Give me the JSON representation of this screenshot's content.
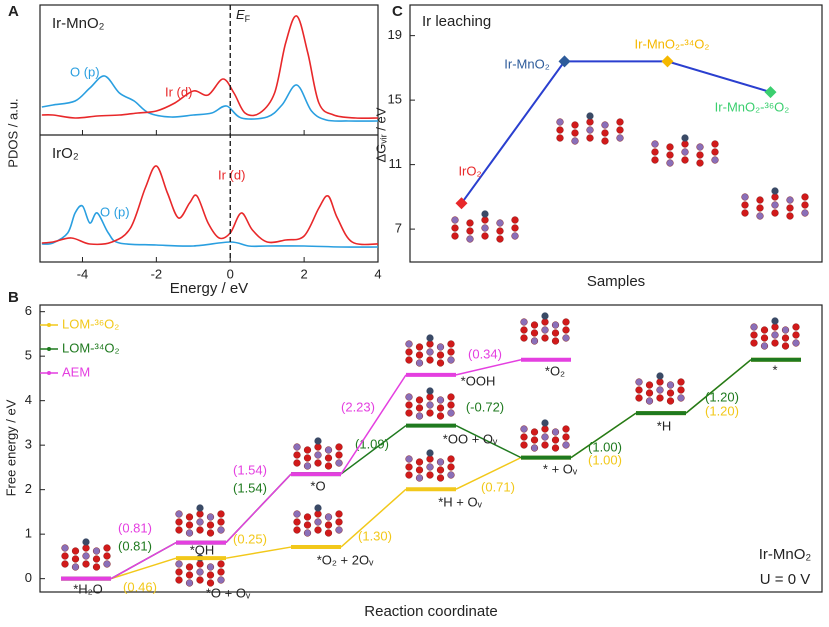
{
  "chart_data": [
    {
      "type": "line",
      "panel": "A",
      "title": "Ir-MnO₂",
      "ylabel": "PDOS / a.u.",
      "vline": 0,
      "vline_label": "E",
      "vline_label_sub": "F",
      "xlim": [
        -5.15,
        4
      ],
      "ylim": [
        -12,
        118
      ],
      "series": [
        {
          "name": "O (p)",
          "color": "#2a9fe0",
          "x": [
            -5.1,
            -4.8,
            -4.2,
            -3.8,
            -3.4,
            -3.0,
            -2.6,
            -2.2,
            -1.6,
            -1.0,
            -0.5,
            -0.1,
            0.3,
            1.0,
            1.4,
            1.8,
            2.2,
            2.6,
            3.2,
            4.0
          ],
          "values": [
            16,
            18,
            22,
            35,
            47,
            30,
            22,
            10,
            6,
            8,
            10,
            17,
            5,
            6,
            18,
            38,
            12,
            3,
            2,
            2
          ]
        },
        {
          "name": "Ir (d)",
          "color": "#e8282a",
          "x": [
            -5.1,
            -4.8,
            -4.2,
            -3.6,
            -3.0,
            -2.5,
            -2.0,
            -1.5,
            -1.0,
            -0.6,
            -0.2,
            0.1,
            0.4,
            0.8,
            1.2,
            1.5,
            1.8,
            2.1,
            2.4,
            2.8,
            3.4,
            4.0
          ],
          "values": [
            8,
            8,
            5,
            7,
            8,
            10,
            12,
            20,
            32,
            28,
            44,
            30,
            10,
            10,
            30,
            80,
            107,
            70,
            20,
            8,
            5,
            5
          ]
        }
      ]
    },
    {
      "type": "line",
      "title": "IrO₂",
      "xlabel": "Energy / eV",
      "xlim": [
        -5.15,
        4
      ],
      "ylim": [
        -14,
        113
      ],
      "xticks": [
        -4,
        -2,
        0,
        2,
        4
      ],
      "series": [
        {
          "name": "O (p)",
          "color": "#2a9fe0",
          "x": [
            -5.1,
            -4.8,
            -4.4,
            -4.2,
            -4.0,
            -3.8,
            -3.6,
            -3.3,
            -3.0,
            -2.0,
            -1.0,
            0.0,
            0.5,
            1.0,
            2.0,
            3.0,
            4.0
          ],
          "values": [
            4,
            5,
            15,
            35,
            42,
            25,
            35,
            15,
            5,
            3,
            2,
            6,
            2,
            2,
            2,
            1,
            1
          ]
        },
        {
          "name": "Ir (d)",
          "color": "#e8282a",
          "x": [
            -5.1,
            -4.8,
            -4.3,
            -3.8,
            -3.2,
            -2.7,
            -2.3,
            -2.0,
            -1.7,
            -1.4,
            -1.1,
            -0.9,
            -0.6,
            -0.3,
            0.0,
            0.3,
            0.6,
            1.0,
            1.5,
            2.0,
            2.4,
            2.65,
            2.9,
            3.3,
            4.0
          ],
          "values": [
            5,
            6,
            10,
            4,
            6,
            20,
            60,
            82,
            55,
            30,
            45,
            52,
            25,
            10,
            15,
            35,
            18,
            6,
            8,
            12,
            40,
            52,
            30,
            6,
            4
          ]
        }
      ]
    },
    {
      "type": "line",
      "panel": "C",
      "title": "Ir leaching",
      "xlabel": "Samples",
      "ylabel": "ΔGᵥᵢᵣ / eV",
      "categories": [
        "IrO₂",
        "Ir-MnO₂",
        "Ir-MnO₂-³⁴O₂",
        "Ir-MnO₂-³⁶O₂"
      ],
      "values": [
        8.6,
        17.4,
        17.4,
        15.5
      ],
      "color": "#2a3fcf",
      "point_colors": [
        "#e8282a",
        "#2d5b9a",
        "#f5b800",
        "#3bcf6f"
      ],
      "ylim": [
        4.96,
        20.9
      ],
      "yticks": [
        7,
        11,
        15,
        19
      ]
    },
    {
      "type": "step",
      "panel": "B",
      "xlabel": "Reaction coordinate",
      "ylabel": "Free energy / eV",
      "ylim": [
        -0.3,
        6.15
      ],
      "yticks": [
        0,
        1,
        2,
        3,
        4,
        5,
        6
      ],
      "series": [
        {
          "name": "LOM-³⁶O₂",
          "color": "#f2c81a",
          "values": [
            0,
            0.46,
            0.71,
            2.01,
            2.72,
            3.72,
            4.92
          ],
          "steps": [
            0.46,
            0.25,
            1.3,
            0.71,
            1.0,
            1.2
          ],
          "step_labels": [
            "(0.46)",
            "(0.25)",
            "(1.30)",
            "(0.71)",
            "(1.00)",
            "(1.20)"
          ]
        },
        {
          "name": "LOM-³⁴O₂",
          "color": "#1f7a1f",
          "values": [
            0,
            0.81,
            2.35,
            3.44,
            2.72,
            3.72,
            4.92
          ],
          "steps": [
            0.81,
            1.54,
            1.09,
            -0.72,
            1.0,
            1.2
          ],
          "step_labels": [
            "(0.81)",
            "(1.54)",
            "(1.09)",
            "(-0.72)",
            "(1.00)",
            "(1.20)"
          ]
        },
        {
          "name": "AEM",
          "color": "#e43fe0",
          "values": [
            0,
            0.81,
            2.35,
            4.58,
            4.92,
            null,
            null
          ],
          "steps": [
            0.81,
            1.54,
            2.23,
            0.34
          ],
          "step_labels": [
            "(0.81)",
            "(1.54)",
            "(2.23)",
            "(0.34)"
          ]
        }
      ],
      "state_labels": [
        "*H₂O",
        "*OH",
        "*O + Oᵥ",
        "*O",
        "*O₂ + 2Oᵥ",
        "*OOH",
        "*OO + Oᵥ",
        "*H + Oᵥ",
        "*O₂",
        "* + Oᵥ",
        "*H",
        "*"
      ],
      "annotations": [
        "Ir-MnO₂",
        "U = 0 V"
      ]
    }
  ]
}
